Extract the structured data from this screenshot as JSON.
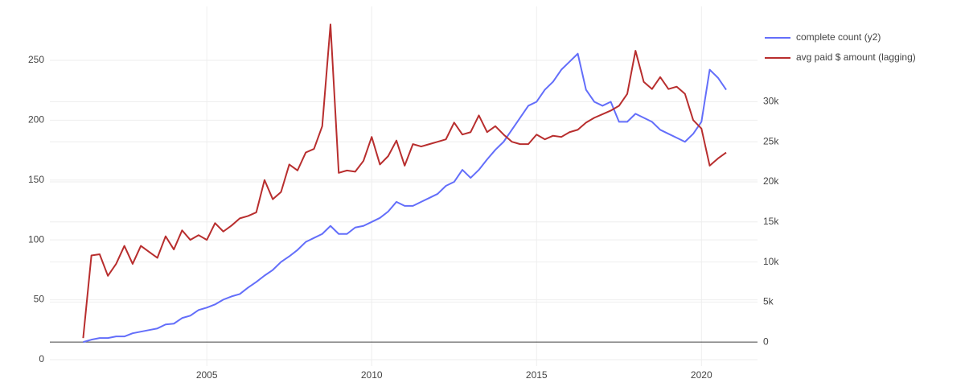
{
  "chart_data": {
    "type": "line",
    "x": [
      2001.25,
      2001.5,
      2001.75,
      2002,
      2002.25,
      2002.5,
      2002.75,
      2003,
      2003.25,
      2003.5,
      2003.75,
      2004,
      2004.25,
      2004.5,
      2004.75,
      2005,
      2005.25,
      2005.5,
      2005.75,
      2006,
      2006.25,
      2006.5,
      2006.75,
      2007,
      2007.25,
      2007.5,
      2007.75,
      2008,
      2008.25,
      2008.5,
      2008.75,
      2009,
      2009.25,
      2009.5,
      2009.75,
      2010,
      2010.25,
      2010.5,
      2010.75,
      2011,
      2011.25,
      2011.5,
      2011.75,
      2012,
      2012.25,
      2012.5,
      2012.75,
      2013,
      2013.25,
      2013.5,
      2013.75,
      2014,
      2014.25,
      2014.5,
      2014.75,
      2015,
      2015.25,
      2015.5,
      2015.75,
      2016,
      2016.25,
      2016.5,
      2016.75,
      2017,
      2017.25,
      2017.5,
      2017.75,
      2018,
      2018.25,
      2018.5,
      2018.75,
      2019,
      2019.25,
      2019.5,
      2019.75,
      2020,
      2020.25,
      2020.5,
      2020.75
    ],
    "series": [
      {
        "name": "complete count (y2)",
        "color": "#636efa",
        "axis": "y2",
        "values": [
          0,
          300,
          500,
          500,
          700,
          700,
          1100,
          1300,
          1500,
          1700,
          2200,
          2300,
          3000,
          3300,
          4000,
          4300,
          4700,
          5300,
          5700,
          6000,
          6800,
          7500,
          8300,
          9000,
          10000,
          10700,
          11500,
          12500,
          13000,
          13500,
          14500,
          13500,
          13500,
          14300,
          14500,
          15000,
          15500,
          16300,
          17500,
          17000,
          17000,
          17500,
          18000,
          18500,
          19500,
          20000,
          21500,
          20500,
          21500,
          22800,
          24000,
          25000,
          26500,
          28000,
          29500,
          30000,
          31500,
          32500,
          34000,
          35000,
          36000,
          31500,
          30000,
          29500,
          30000,
          27500,
          27500,
          28500,
          28000,
          27500,
          26500,
          26000,
          25500,
          25000,
          26000,
          27500,
          34000,
          33000,
          31500
        ]
      },
      {
        "name": "avg paid $ amount (lagging)",
        "color": "#b82e2e",
        "values": [
          18,
          87,
          88,
          70,
          80,
          95,
          80,
          95,
          90,
          85,
          103,
          92,
          108,
          100,
          104,
          100,
          114,
          107,
          112,
          118,
          120,
          123,
          150,
          134,
          140,
          163,
          158,
          173,
          176,
          195,
          280,
          156,
          158,
          157,
          166,
          186,
          163,
          170,
          183,
          162,
          180,
          178,
          180,
          182,
          184,
          198,
          188,
          190,
          204,
          190,
          195,
          188,
          182,
          180,
          180,
          188,
          184,
          187,
          186,
          190,
          192,
          198,
          202,
          205,
          208,
          212,
          222,
          258,
          232,
          226,
          236,
          226,
          228,
          222,
          200,
          193,
          162,
          168,
          173
        ]
      }
    ],
    "xlim": [
      2000.24,
      2021.7
    ],
    "xticks": [
      2005,
      2010,
      2015,
      2020
    ],
    "ylim": [
      -5.4,
      295
    ],
    "yticks": [
      0,
      50,
      100,
      150,
      200,
      250
    ],
    "y2lim": [
      -3000,
      41900
    ],
    "y2ticks": [
      0,
      {
        "value": 5000,
        "label": "5k"
      },
      {
        "value": 10000,
        "label": "10k"
      },
      {
        "value": 15000,
        "label": "15k"
      },
      {
        "value": 20000,
        "label": "20k"
      },
      {
        "value": 25000,
        "label": "25k"
      },
      {
        "value": 30000,
        "label": "30k"
      }
    ],
    "grid": true,
    "legend": "top-right"
  }
}
